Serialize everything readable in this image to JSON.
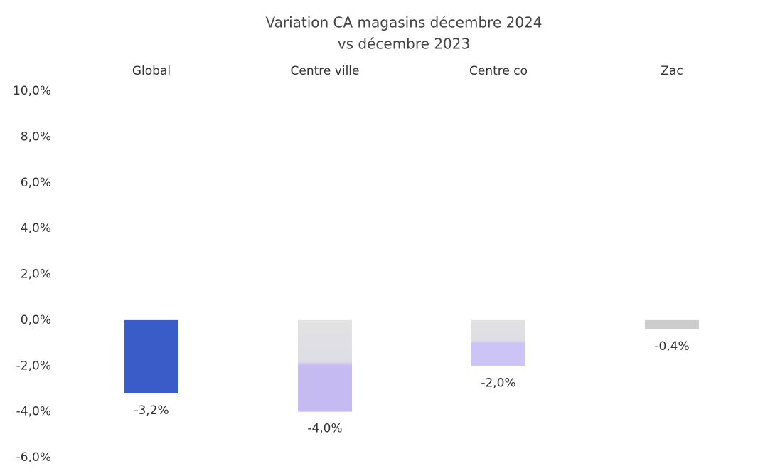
{
  "chart_data": {
    "type": "bar",
    "title": [
      "Variation CA magasins décembre 2024",
      "vs décembre 2023"
    ],
    "categories": [
      "Global",
      "Centre ville",
      "Centre co",
      "Zac"
    ],
    "values": [
      -3.2,
      -4.0,
      -2.0,
      -0.4
    ],
    "value_labels": [
      "-3,2%",
      "-4,0%",
      "-2,0%",
      "-0,4%"
    ],
    "colors": [
      "#3a5cc9",
      "#c5baf2",
      "#cdc4f6",
      "#cccccc"
    ],
    "ylim": [
      -6,
      10
    ],
    "yticks": [
      {
        "value": -6,
        "label": "-6,0%"
      },
      {
        "value": -4,
        "label": "-4,0%"
      },
      {
        "value": -2,
        "label": "-2,0%"
      },
      {
        "value": 0,
        "label": "0,0%"
      },
      {
        "value": 2,
        "label": "2,0%"
      },
      {
        "value": 4,
        "label": "4,0%"
      },
      {
        "value": 6,
        "label": "6,0%"
      },
      {
        "value": 8,
        "label": "8,0%"
      },
      {
        "value": 10,
        "label": "10,0%"
      }
    ],
    "grid": false
  }
}
